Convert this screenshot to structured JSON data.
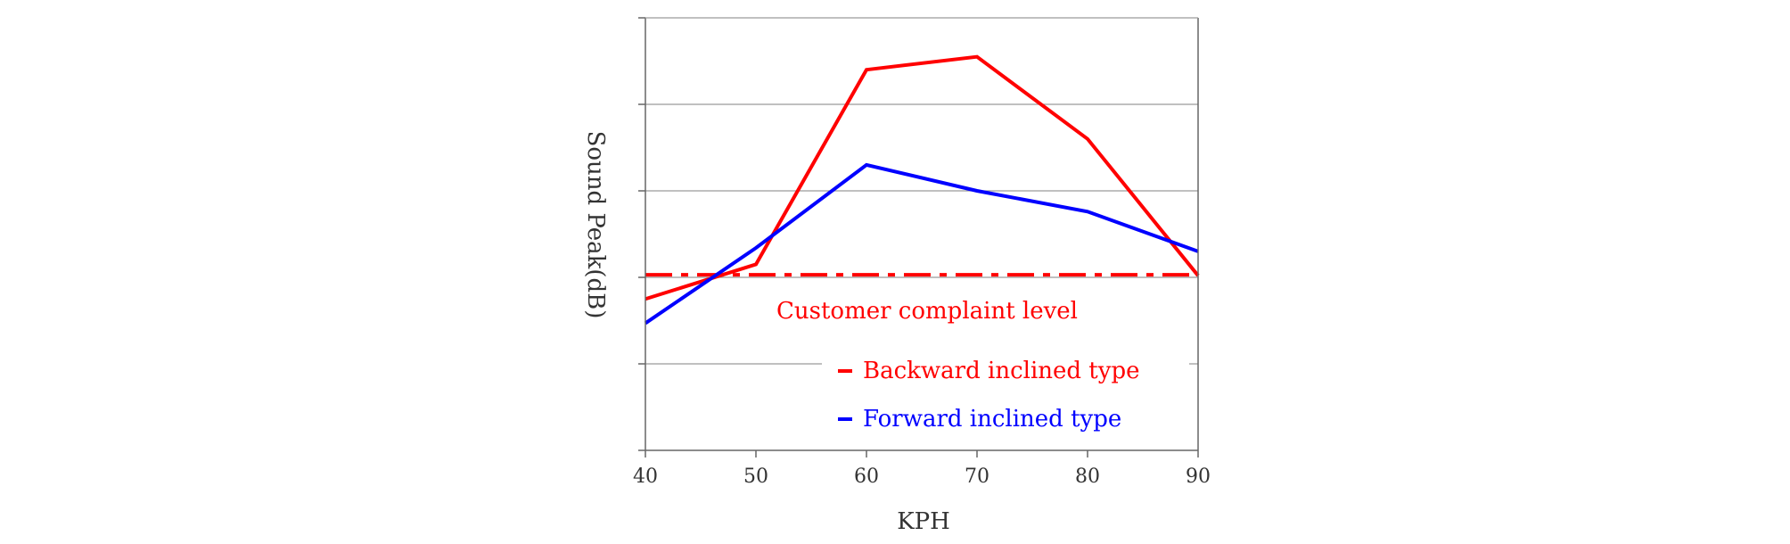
{
  "chart_data": {
    "type": "line",
    "title": "",
    "xlabel": "KPH",
    "ylabel": "Sound Peak(dB)",
    "x": [
      40,
      50,
      60,
      70,
      80,
      90
    ],
    "xlim": [
      40,
      90
    ],
    "ylim": [
      0,
      5
    ],
    "y_ticks_labeled": false,
    "grid": "horizontal",
    "series": [
      {
        "name": "Backward inclined type",
        "color": "#ff0000",
        "values": [
          1.75,
          2.15,
          4.4,
          4.55,
          3.6,
          2.02
        ]
      },
      {
        "name": "Forward inclined type",
        "color": "#0000ff",
        "values": [
          1.47,
          2.34,
          3.3,
          3.0,
          2.76,
          2.3
        ]
      }
    ],
    "reference_line": {
      "label": "Customer complaint level",
      "value": 2.03,
      "color": "#ff0000",
      "style": "dash-dot"
    },
    "legend": {
      "placement": "bottom-right",
      "entries": [
        "Backward inclined type",
        "Forward inclined type"
      ]
    }
  }
}
